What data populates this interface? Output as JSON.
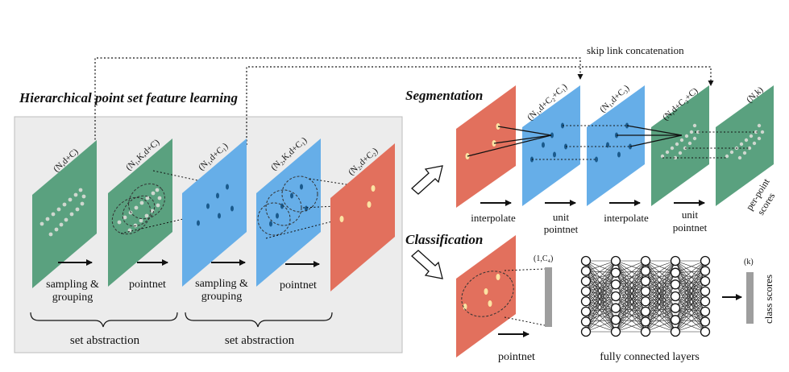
{
  "title_hierarchical": "Hierarchical point set feature learning",
  "title_segmentation": "Segmentation",
  "title_classification": "Classification",
  "skip_link": "skip link concatenation",
  "left": {
    "layer_labels": [
      "(N,d+C)",
      "(N₁,K,d+C)",
      "(N₁,d+C₁)",
      "(N₂,K,d+C₁)",
      "(N₂,d+C₂)"
    ],
    "op1_line1": "sampling &",
    "op1_line2": "grouping",
    "op2": "pointnet",
    "op3_line1": "sampling &",
    "op3_line2": "grouping",
    "op4": "pointnet",
    "set_abstraction_1": "set abstraction",
    "set_abstraction_2": "set abstraction"
  },
  "segmentation": {
    "layer_labels": [
      "(N₁,d+C₂+C₁)",
      "(N₁,d+C₃)",
      "(N,d+C₃+C)",
      "(N,k)"
    ],
    "interpolate_1": "interpolate",
    "unit_pointnet_1_l1": "unit",
    "unit_pointnet_1_l2": "pointnet",
    "interpolate_2": "interpolate",
    "unit_pointnet_2_l1": "unit",
    "unit_pointnet_2_l2": "pointnet",
    "per_point_l1": "per-point",
    "per_point_l2": "scores"
  },
  "classification": {
    "vector_label": "(1,C₄)",
    "pointnet": "pointnet",
    "fc_layers": "fully connected layers",
    "k_label": "(k)",
    "class_scores": "class scores"
  },
  "colors": {
    "green": "#5aa17f",
    "blue": "#66aee8",
    "red": "#e2705d",
    "panel": "#ececec",
    "point": "#fbe3a3",
    "dark_point": "#1a5a8c"
  }
}
